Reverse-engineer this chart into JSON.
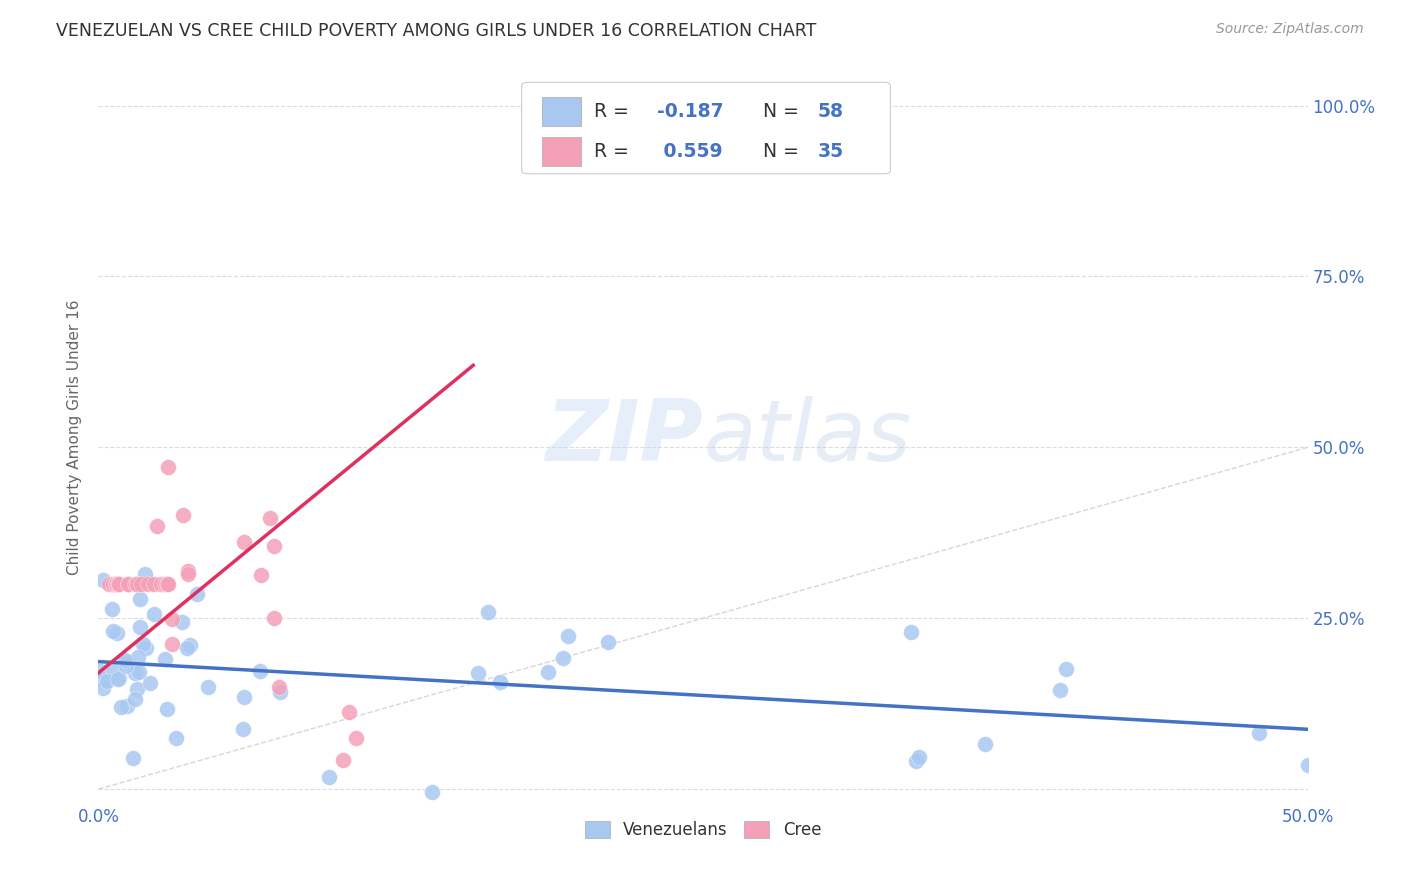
{
  "title": "VENEZUELAN VS CREE CHILD POVERTY AMONG GIRLS UNDER 16 CORRELATION CHART",
  "source": "Source: ZipAtlas.com",
  "ylabel": "Child Poverty Among Girls Under 16",
  "xlim": [
    0.0,
    0.5
  ],
  "ylim": [
    -0.02,
    1.05
  ],
  "venezuelan_color": "#a8c8f0",
  "cree_color": "#f4a0b8",
  "trendline_venezuelan_color": "#4472c4",
  "trendline_cree_color": "#e03060",
  "diagonal_color": "#cccccc",
  "R_venezuelan": -0.187,
  "N_venezuelan": 58,
  "R_cree": 0.559,
  "N_cree": 35,
  "watermark_zip": "ZIP",
  "watermark_atlas": "atlas",
  "background_color": "#ffffff",
  "grid_color": "#dddddd",
  "title_color": "#333333",
  "axis_color": "#4472c4",
  "legend_box_color": "#eeeeee"
}
